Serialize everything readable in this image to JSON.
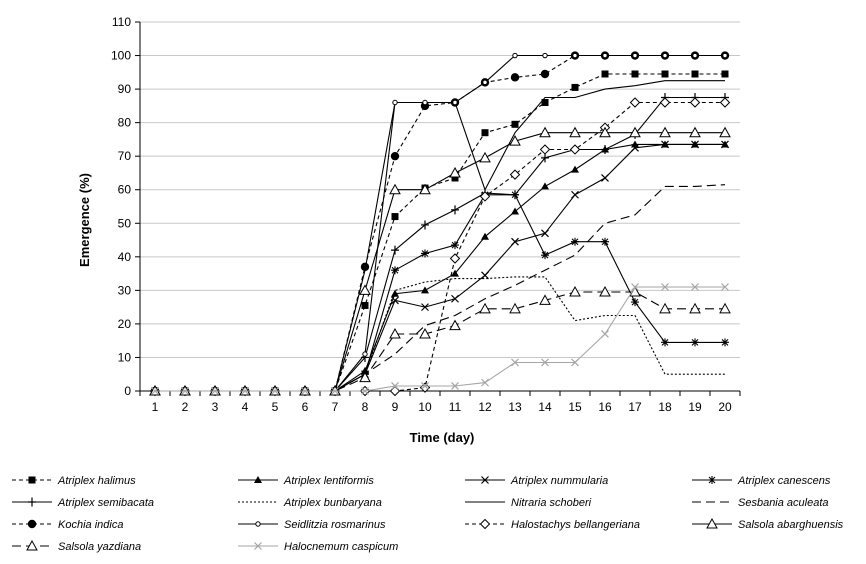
{
  "chart_data": {
    "type": "line",
    "xlabel": "Time (day)",
    "ylabel": "Emergence (%)",
    "x": [
      1,
      2,
      3,
      4,
      5,
      6,
      7,
      8,
      9,
      10,
      11,
      12,
      13,
      14,
      15,
      16,
      17,
      18,
      19,
      20
    ],
    "xlim": [
      1,
      20
    ],
    "ylim": [
      0,
      110
    ],
    "yticks": [
      0,
      10,
      20,
      30,
      40,
      50,
      60,
      70,
      80,
      90,
      100,
      110
    ],
    "grid": "horizontal",
    "legend_position": "bottom",
    "series": [
      {
        "name": "Atriplex halimus",
        "line": "dashed",
        "marker": "square-filled",
        "color": "#000000",
        "values": [
          0,
          0,
          0,
          0,
          0,
          0,
          0,
          25.5,
          52,
          60.5,
          63.5,
          77,
          79.5,
          86,
          90.5,
          94.5,
          94.5,
          94.5,
          94.5,
          94.5
        ]
      },
      {
        "name": "Atriplex lentiformis",
        "line": "solid",
        "marker": "triangle-filled",
        "color": "#000000",
        "values": [
          0,
          0,
          0,
          0,
          0,
          0,
          0,
          6,
          29,
          30,
          35,
          46,
          53.5,
          61,
          66,
          72,
          73.5,
          73.5,
          73.5,
          73.5
        ]
      },
      {
        "name": "Atriplex nummularia",
        "line": "solid",
        "marker": "x",
        "color": "#000000",
        "values": [
          0,
          0,
          0,
          0,
          0,
          0,
          0,
          5,
          27,
          25,
          27.5,
          34.5,
          44.5,
          47,
          58.5,
          63.5,
          72.5,
          73.5,
          73.5,
          73.5
        ]
      },
      {
        "name": "Atriplex canescens",
        "line": "solid",
        "marker": "star",
        "color": "#000000",
        "values": [
          0,
          0,
          0,
          0,
          0,
          0,
          0,
          5,
          36,
          41,
          43.5,
          58.5,
          58.5,
          40.5,
          44.5,
          44.5,
          26.5,
          14.5,
          14.5,
          14.5
        ]
      },
      {
        "name": "Atriplex semibacata",
        "line": "solid",
        "marker": "plus",
        "color": "#000000",
        "values": [
          0,
          0,
          0,
          0,
          0,
          0,
          0,
          10,
          42,
          49.5,
          54,
          59,
          58.5,
          69.5,
          72,
          72,
          76.5,
          87.5,
          87.5,
          87.5
        ]
      },
      {
        "name": "Atriplex bunbaryana",
        "line": "dotted",
        "marker": "none",
        "color": "#000000",
        "values": [
          0,
          0,
          0,
          0,
          0,
          0,
          0,
          5,
          30,
          32.5,
          33.5,
          33.5,
          34,
          34,
          21,
          22.5,
          22.5,
          5,
          5,
          5
        ]
      },
      {
        "name": "Nitraria schoberi",
        "line": "solid",
        "marker": "none",
        "color": "#000000",
        "values": [
          0,
          0,
          0,
          0,
          0,
          0,
          0,
          36,
          86,
          86,
          86,
          60,
          77,
          87.5,
          87.5,
          90,
          91,
          92.5,
          92.5,
          92.5
        ]
      },
      {
        "name": "Sesbania aculeata",
        "line": "long-dashed",
        "marker": "none",
        "color": "#000000",
        "values": [
          0,
          0,
          0,
          0,
          0,
          0,
          0,
          5,
          11,
          19.5,
          22.5,
          27.5,
          31.5,
          36,
          40.5,
          50,
          52.5,
          61,
          61,
          61.5
        ]
      },
      {
        "name": "Kochia indica",
        "line": "dashed",
        "marker": "circle-filled",
        "color": "#000000",
        "values": [
          0,
          0,
          0,
          0,
          0,
          0,
          0,
          37,
          70,
          85,
          86,
          92,
          93.5,
          94.5,
          100,
          100,
          100,
          100,
          100,
          100
        ]
      },
      {
        "name": "Seidlitzia rosmarinus",
        "line": "solid",
        "marker": "small-circle",
        "color": "#000000",
        "values": [
          0,
          0,
          0,
          0,
          0,
          0,
          0,
          11,
          86,
          86,
          86,
          92,
          100,
          100,
          100,
          100,
          100,
          100,
          100,
          100
        ]
      },
      {
        "name": "Halostachys bellangeriana",
        "line": "dashed",
        "marker": "diamond-open",
        "color": "#000000",
        "values": [
          0,
          0,
          0,
          0,
          0,
          0,
          0,
          0,
          0,
          1,
          39.5,
          58,
          64.5,
          72,
          72,
          78.5,
          86,
          86,
          86,
          86
        ]
      },
      {
        "name": "Salsola abarghuensis",
        "line": "solid",
        "marker": "triangle-open",
        "color": "#000000",
        "values": [
          0,
          0,
          0,
          0,
          0,
          0,
          0,
          30,
          60,
          60,
          65,
          69.5,
          74.5,
          77,
          77,
          77,
          77,
          77,
          77,
          77
        ]
      },
      {
        "name": "Salsola yazdiana",
        "line": "long-dashed",
        "marker": "triangle-open",
        "color": "#000000",
        "values": [
          0,
          0,
          0,
          0,
          0,
          0,
          0,
          4,
          17,
          17,
          19.5,
          24.5,
          24.5,
          27,
          29.5,
          29.5,
          29.5,
          24.5,
          24.5,
          24.5
        ]
      },
      {
        "name": "Halocnemum caspicum",
        "line": "solid",
        "marker": "x-grey",
        "color": "#a6a6a6",
        "values": [
          0,
          0,
          0,
          0,
          0,
          0,
          0,
          0,
          1.5,
          1.5,
          1.5,
          2.5,
          8.5,
          8.5,
          8.5,
          17,
          31,
          31,
          31,
          31
        ]
      }
    ]
  }
}
